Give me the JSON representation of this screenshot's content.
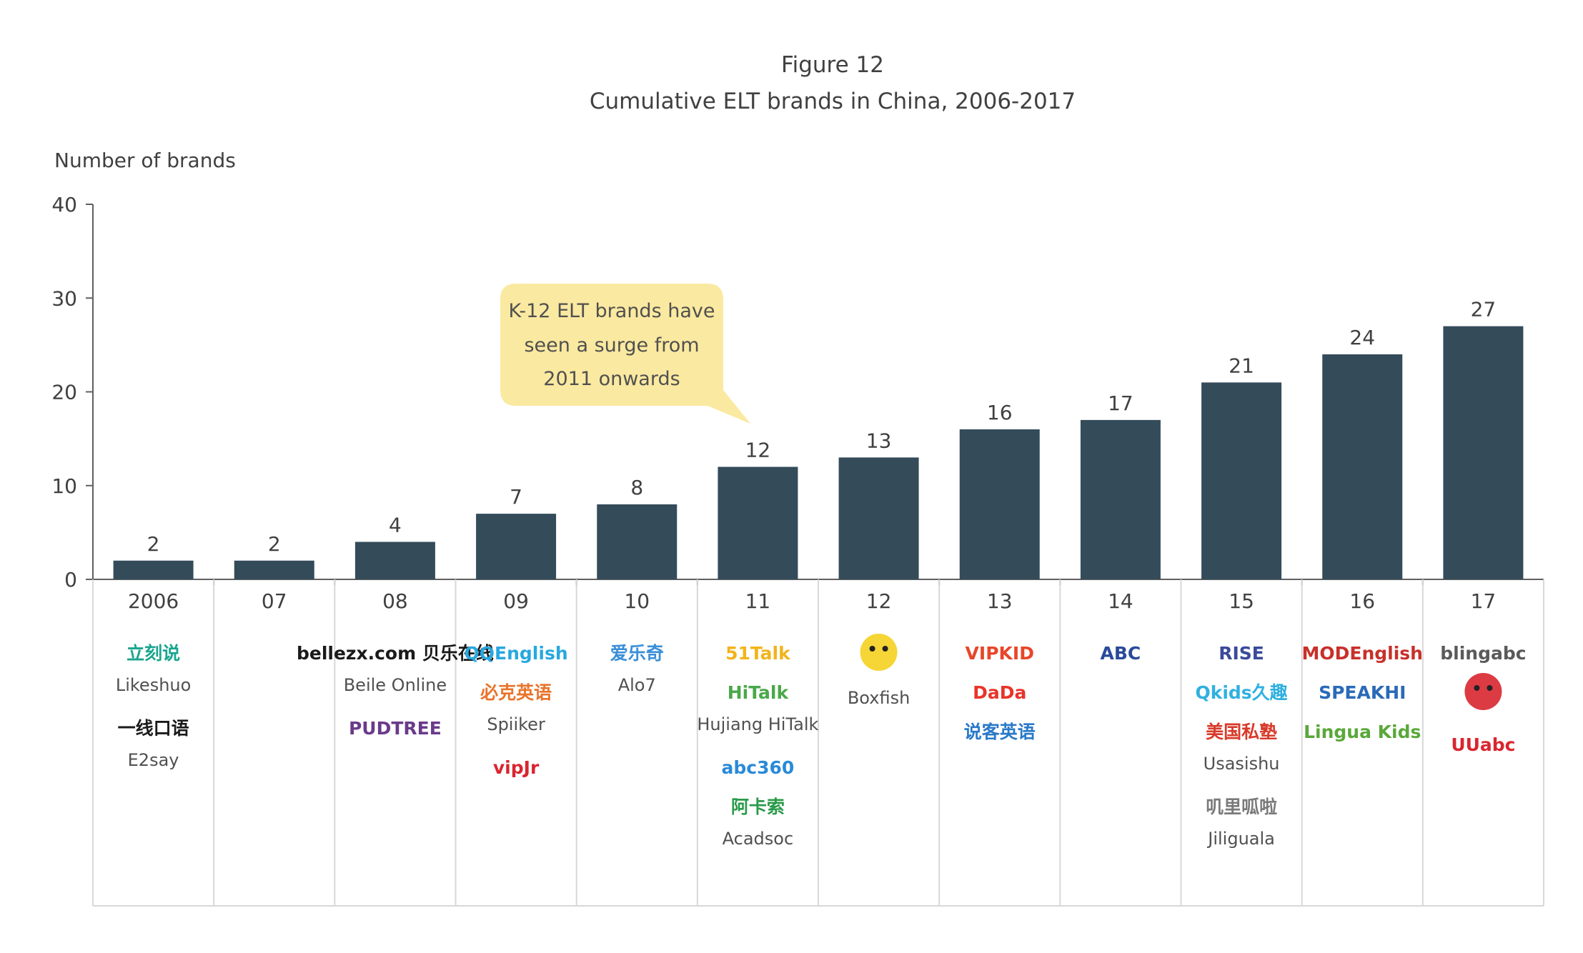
{
  "chart_data": {
    "type": "bar",
    "title": "Figure 12",
    "subtitle": "Cumulative ELT brands in China, 2006-2017",
    "ylabel": "Number of brands",
    "xlabel": "",
    "ylim": [
      0,
      40
    ],
    "yticks": [
      0,
      10,
      20,
      30,
      40
    ],
    "categories": [
      "2006",
      "07",
      "08",
      "09",
      "10",
      "11",
      "12",
      "13",
      "14",
      "15",
      "16",
      "17"
    ],
    "values": [
      2,
      2,
      4,
      7,
      8,
      12,
      13,
      16,
      17,
      21,
      24,
      27
    ],
    "bar_color": "#344b5a",
    "grid": false,
    "legend": "none",
    "annotation": {
      "lines": [
        "K-12 ELT brands have",
        "seen a surge from",
        "2011 onwards"
      ],
      "color": "#fae9a0",
      "points_to": "11"
    },
    "brands": [
      {
        "year": "2006",
        "logos": [
          {
            "text": "立刻说",
            "color": "#1aa58e",
            "caption": "Likeshuo"
          },
          {
            "text": "一线口语",
            "color": "#1a1a1a",
            "caption": "E2say"
          }
        ]
      },
      {
        "year": "07",
        "logos": []
      },
      {
        "year": "08",
        "logos": [
          {
            "text": "bellezx.com 贝乐在线",
            "color": "#1a1a1a",
            "caption": "Beile Online"
          },
          {
            "text": "PUDTREE",
            "color": "#6a3a8a",
            "caption": ""
          }
        ]
      },
      {
        "year": "09",
        "logos": [
          {
            "text": "QQEnglish",
            "color": "#28a8e0",
            "caption": ""
          },
          {
            "text": "必克英语",
            "color": "#e8742a",
            "caption": "Spiiker"
          },
          {
            "text": "vipJr",
            "color": "#d8262f",
            "caption": ""
          }
        ]
      },
      {
        "year": "10",
        "logos": [
          {
            "text": "爱乐奇",
            "color": "#3a8fd8",
            "caption": "Alo7"
          }
        ]
      },
      {
        "year": "11",
        "logos": [
          {
            "text": "51Talk",
            "color": "#f2b41c",
            "caption": ""
          },
          {
            "text": "HiTalk",
            "color": "#4aa84a",
            "caption": "Hujiang HiTalk"
          },
          {
            "text": "abc360",
            "color": "#2a8ad8",
            "caption": ""
          },
          {
            "text": "阿卡索",
            "color": "#2a9a4a",
            "caption": "Acadsoc"
          }
        ]
      },
      {
        "year": "12",
        "logos": [
          {
            "text": "",
            "color": "#f5d020",
            "caption": "Boxfish"
          }
        ]
      },
      {
        "year": "13",
        "logos": [
          {
            "text": "VIPKID",
            "color": "#e8462a",
            "caption": ""
          },
          {
            "text": "DaDa",
            "color": "#e8342a",
            "caption": ""
          },
          {
            "text": "说客英语",
            "color": "#2a7ac8",
            "caption": ""
          }
        ]
      },
      {
        "year": "14",
        "logos": [
          {
            "text": "ABC",
            "color": "#2a4a9a",
            "caption": ""
          }
        ]
      },
      {
        "year": "15",
        "logos": [
          {
            "text": "RISE",
            "color": "#3a4a9a",
            "caption": ""
          },
          {
            "text": "Qkids久趣",
            "color": "#30b0e0",
            "caption": ""
          },
          {
            "text": "美国私塾",
            "color": "#d83a2a",
            "caption": "Usasishu"
          },
          {
            "text": "叽里呱啦",
            "color": "#7a7a7a",
            "caption": "Jiliguala"
          }
        ]
      },
      {
        "year": "16",
        "logos": [
          {
            "text": "MODEnglish",
            "color": "#c8302a",
            "caption": ""
          },
          {
            "text": "SPEAKHI",
            "color": "#2a6ab8",
            "caption": ""
          },
          {
            "text": "Lingua Kids",
            "color": "#5aa83a",
            "caption": ""
          }
        ]
      },
      {
        "year": "17",
        "logos": [
          {
            "text": "blingabc",
            "color": "#5a5a5a",
            "caption": ""
          },
          {
            "text": "",
            "color": "#d8262f",
            "caption": ""
          },
          {
            "text": "UUabc",
            "color": "#d8262f",
            "caption": ""
          }
        ]
      }
    ]
  }
}
